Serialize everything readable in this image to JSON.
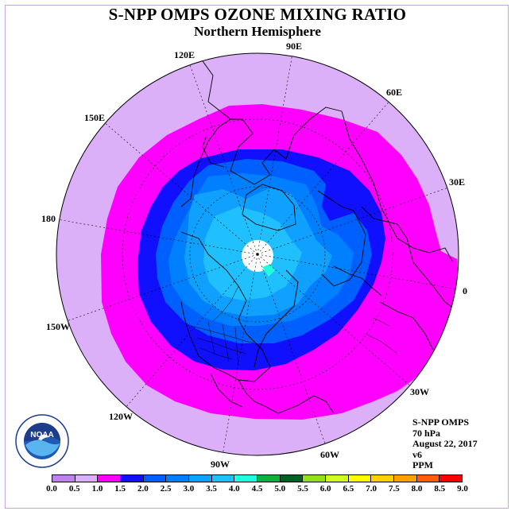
{
  "title": "S-NPP OMPS OZONE MIXING RATIO",
  "subtitle": "Northern Hemisphere",
  "longitude_labels": [
    "90E",
    "60E",
    "30E",
    "0",
    "30W",
    "60W",
    "90W",
    "120W",
    "150W",
    "180",
    "150E",
    "120E"
  ],
  "info": {
    "instrument": "S-NPP OMPS",
    "pressure_level": "70 hPa",
    "date": "August 22, 2017",
    "version": "v6",
    "units": "PPM"
  },
  "colorbar": {
    "ticks": [
      "0.0",
      "0.5",
      "1.0",
      "1.5",
      "2.0",
      "2.5",
      "3.0",
      "3.5",
      "4.0",
      "4.5",
      "5.0",
      "5.5",
      "6.0",
      "6.5",
      "7.0",
      "7.5",
      "8.0",
      "8.5",
      "9.0"
    ],
    "colors": [
      "#c080f0",
      "#dcb0f8",
      "#ff00ff",
      "#1010ff",
      "#0060ff",
      "#0080ff",
      "#10a0ff",
      "#20c0ff",
      "#20ffe0",
      "#10b040",
      "#006020",
      "#90e020",
      "#d0ff20",
      "#ffff00",
      "#ffd000",
      "#ffa000",
      "#ff6000",
      "#ff0000",
      "#a05030"
    ]
  },
  "logo": {
    "text": "NOAA",
    "ring_text_top": "NATIONAL OCEANIC AND ATMOSPHERIC ADMINISTRATION",
    "ring_text_bottom": "U.S. DEPARTMENT OF COMMERCE"
  },
  "colors": {
    "low_ozone": "#dcb0f8",
    "band_1_0": "#ff00ff",
    "band_1_5": "#1010ff",
    "band_2_0": "#0060ff",
    "band_2_5": "#0080ff",
    "band_3_0": "#10a0ff",
    "band_3_5": "#20c0ff",
    "polar_gap": "#ffffff"
  }
}
